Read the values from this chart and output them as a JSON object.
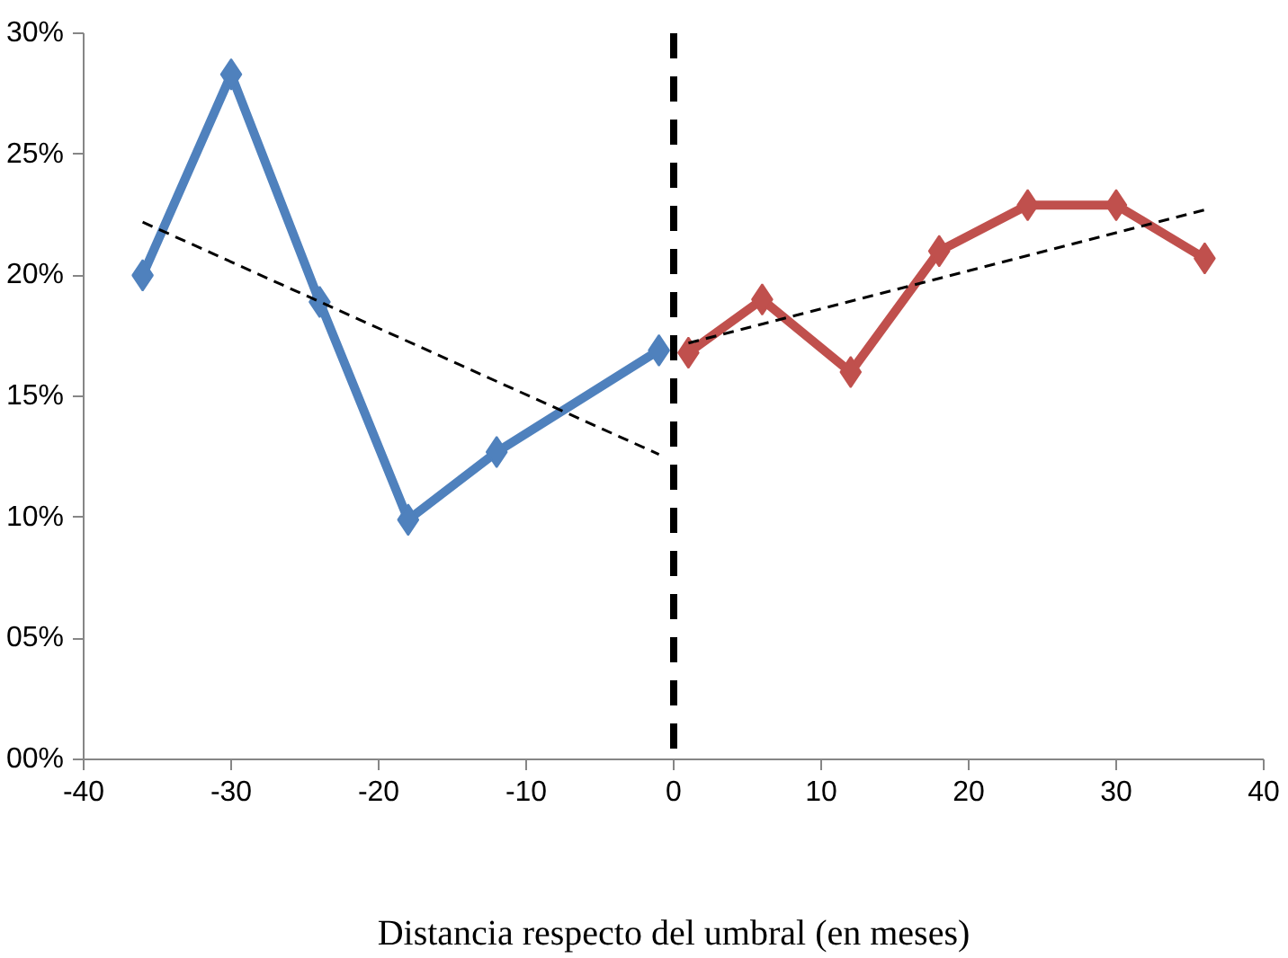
{
  "chart_data": {
    "type": "line",
    "xlabel": "Distancia respecto del umbral (en meses)",
    "marker": "diamond",
    "grid": false,
    "xlim": [
      -40,
      40
    ],
    "xticks": [
      {
        "value": -40,
        "label": "-40"
      },
      {
        "value": -30,
        "label": "-30"
      },
      {
        "value": -20,
        "label": "-20"
      },
      {
        "value": -10,
        "label": "-10"
      },
      0,
      10,
      20,
      30,
      40
    ],
    "ylim": [
      0,
      30
    ],
    "yticks": [
      {
        "value": 0,
        "label": "00%"
      },
      {
        "value": 5,
        "label": "05%"
      },
      {
        "value": 10,
        "label": "10%"
      },
      {
        "value": 15,
        "label": "15%"
      },
      {
        "value": 20,
        "label": "20%"
      },
      {
        "value": 25,
        "label": "25%"
      },
      {
        "value": 30,
        "label": "30%"
      }
    ],
    "series": [
      {
        "color": "#4f81bd",
        "x": [
          -36,
          -30,
          -24,
          -18,
          -12,
          -1
        ],
        "values": [
          20.0,
          28.3,
          18.9,
          9.9,
          12.7,
          16.9
        ]
      },
      {
        "color": "#c0504d",
        "x": [
          1,
          6,
          12,
          18,
          24,
          30,
          36
        ],
        "values": [
          16.8,
          19.0,
          16.0,
          21.0,
          22.9,
          22.9,
          20.7
        ]
      },
      {
        "color": "#000000",
        "x": [
          -36,
          -1
        ],
        "values": [
          22.2,
          12.6
        ],
        "marker": "none",
        "line_style": "dashed"
      },
      {
        "color": "#000000",
        "x": [
          1,
          36
        ],
        "values": [
          17.2,
          22.7
        ],
        "marker": "none",
        "line_style": "dashed"
      }
    ],
    "ref_lines": [
      {
        "axis": "x",
        "value": 0,
        "color": "#000000",
        "line_style": "dashed"
      }
    ]
  }
}
